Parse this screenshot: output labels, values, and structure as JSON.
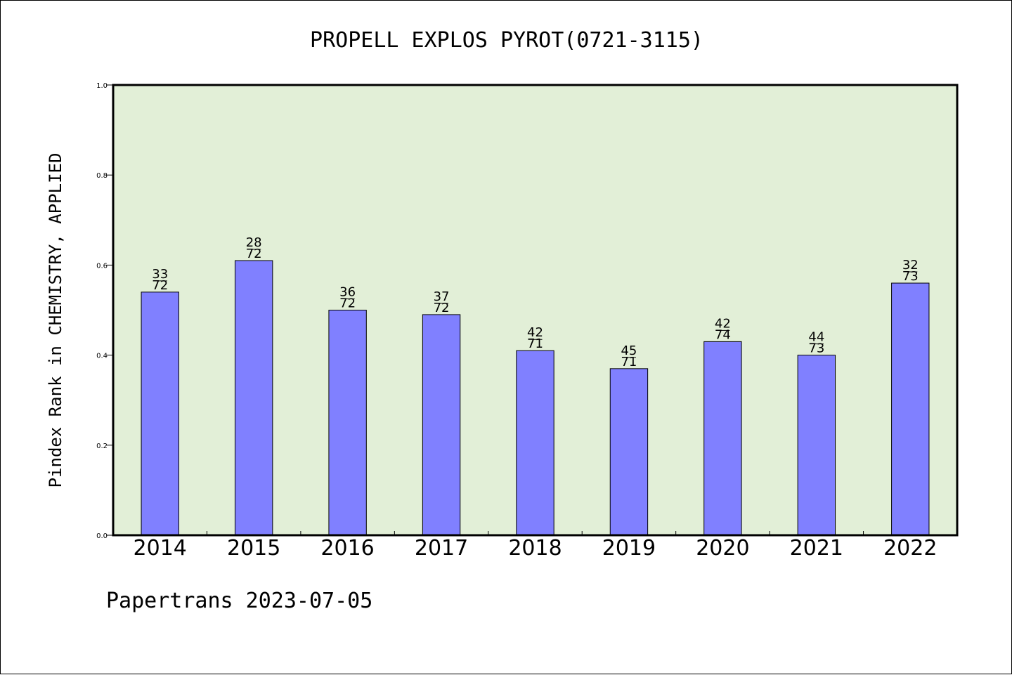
{
  "footer": "Papertrans 2023-07-05",
  "chart_data": {
    "type": "bar",
    "title": "PROPELL EXPLOS PYROT(0721-3115)",
    "xlabel": "",
    "ylabel": "Pindex Rank in CHEMISTRY, APPLIED",
    "ylim": [
      0,
      1.0
    ],
    "yticks": [
      "0.0",
      "0.2",
      "0.4",
      "0.6",
      "0.8",
      "1.0"
    ],
    "categories": [
      "2014",
      "2015",
      "2016",
      "2017",
      "2018",
      "2019",
      "2020",
      "2021",
      "2022"
    ],
    "values": [
      0.54,
      0.61,
      0.5,
      0.49,
      0.41,
      0.37,
      0.43,
      0.4,
      0.56
    ],
    "rank_labels": [
      "33",
      "28",
      "36",
      "37",
      "42",
      "45",
      "42",
      "44",
      "32"
    ],
    "total_labels": [
      "72",
      "72",
      "72",
      "72",
      "71",
      "71",
      "74",
      "73",
      "73"
    ],
    "grid": false,
    "legend": "none",
    "colors": {
      "plot_background": "#E2EFD7",
      "bar": "#8080FF"
    }
  }
}
